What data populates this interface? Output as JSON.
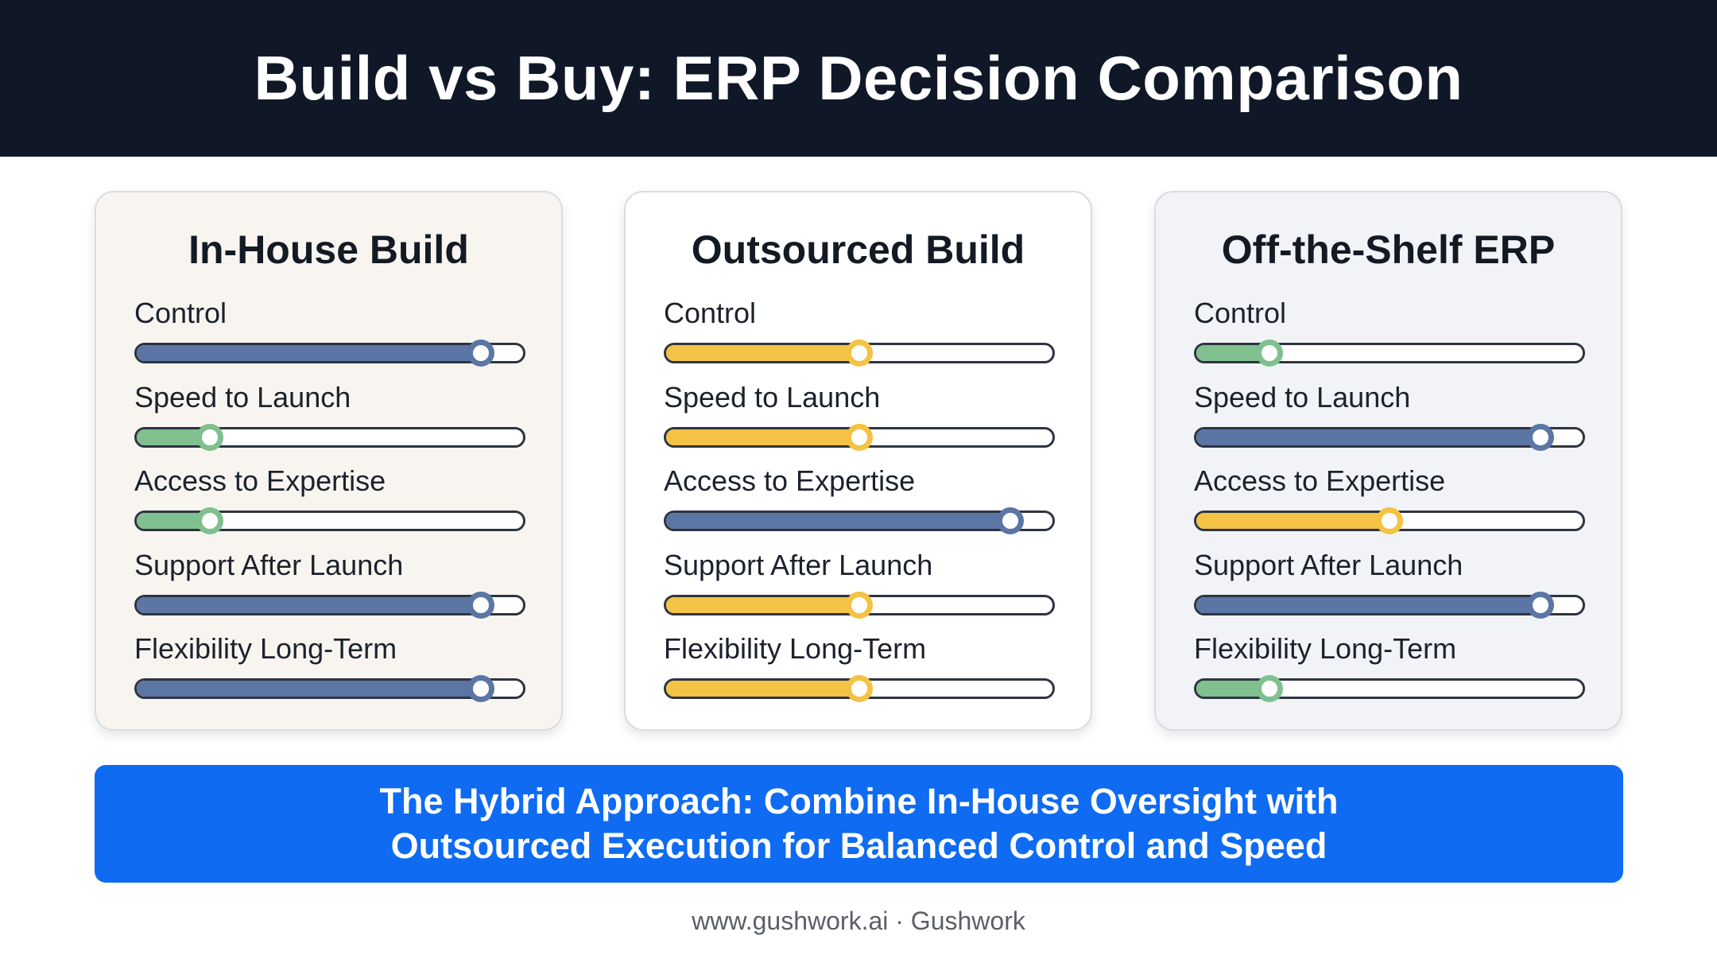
{
  "header": {
    "title": "Build vs Buy: ERP Decision Comparison"
  },
  "colors": {
    "header_bg": "#101828",
    "high": "#5b76a4",
    "medium": "#f4c244",
    "low": "#7fc08e",
    "banner_bg": "#0e6bf2"
  },
  "cards": [
    {
      "title": "In-House Build",
      "metrics": [
        {
          "label": "Control",
          "level": "high",
          "value": 0.89
        },
        {
          "label": "Speed to Launch",
          "level": "low",
          "value": 0.19
        },
        {
          "label": "Access to Expertise",
          "level": "low",
          "value": 0.19
        },
        {
          "label": "Support After Launch",
          "level": "high",
          "value": 0.89
        },
        {
          "label": "Flexibility Long-Term",
          "level": "high",
          "value": 0.89
        }
      ]
    },
    {
      "title": "Outsourced Build",
      "metrics": [
        {
          "label": "Control",
          "level": "medium",
          "value": 0.5
        },
        {
          "label": "Speed to Launch",
          "level": "medium",
          "value": 0.5
        },
        {
          "label": "Access to Expertise",
          "level": "high",
          "value": 0.89
        },
        {
          "label": "Support After Launch",
          "level": "medium",
          "value": 0.5
        },
        {
          "label": "Flexibility Long-Term",
          "level": "medium",
          "value": 0.5
        }
      ]
    },
    {
      "title": "Off-the-Shelf ERP",
      "metrics": [
        {
          "label": "Control",
          "level": "low",
          "value": 0.19
        },
        {
          "label": "Speed to Launch",
          "level": "high",
          "value": 0.89
        },
        {
          "label": "Access to Expertise",
          "level": "medium",
          "value": 0.5
        },
        {
          "label": "Support After Launch",
          "level": "high",
          "value": 0.89
        },
        {
          "label": "Flexibility Long-Term",
          "level": "low",
          "value": 0.19
        }
      ]
    }
  ],
  "banner": {
    "line1": "The Hybrid Approach: Combine In-House Oversight with",
    "line2": "Outsourced Execution for Balanced Control and Speed"
  },
  "footer": {
    "text": "www.gushwork.ai · Gushwork"
  }
}
